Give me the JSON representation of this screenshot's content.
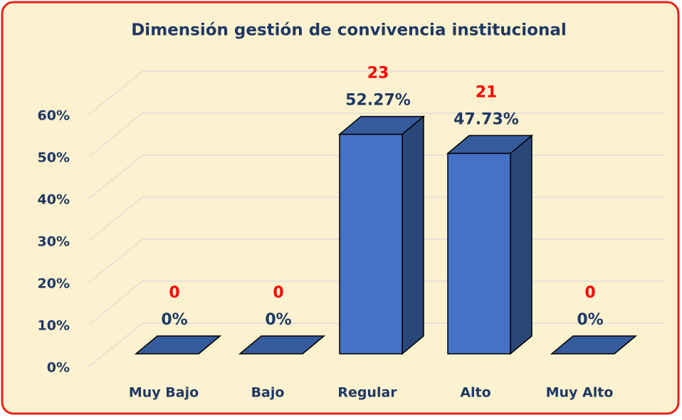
{
  "chart_data": {
    "type": "bar3d",
    "title": "Dimensión gestión de convivencia institucional",
    "categories": [
      "Muy Bajo",
      "Bajo",
      "Regular",
      "Alto",
      "Muy Alto"
    ],
    "values": [
      0,
      0,
      52.27,
      47.73,
      0
    ],
    "value_labels": [
      "0%",
      "0%",
      "52.27%",
      "47.73%",
      "0%"
    ],
    "counts": [
      0,
      0,
      23,
      21,
      0
    ],
    "color": "#4472c4",
    "ylim": [
      0,
      60
    ],
    "yticks": [
      {
        "value": 0,
        "label": "0%"
      },
      {
        "value": 10,
        "label": "10%"
      },
      {
        "value": 20,
        "label": "20%"
      },
      {
        "value": 30,
        "label": "30%"
      },
      {
        "value": 40,
        "label": "40%"
      },
      {
        "value": 50,
        "label": "50%"
      },
      {
        "value": 60,
        "label": "60%"
      }
    ],
    "grid": true
  }
}
